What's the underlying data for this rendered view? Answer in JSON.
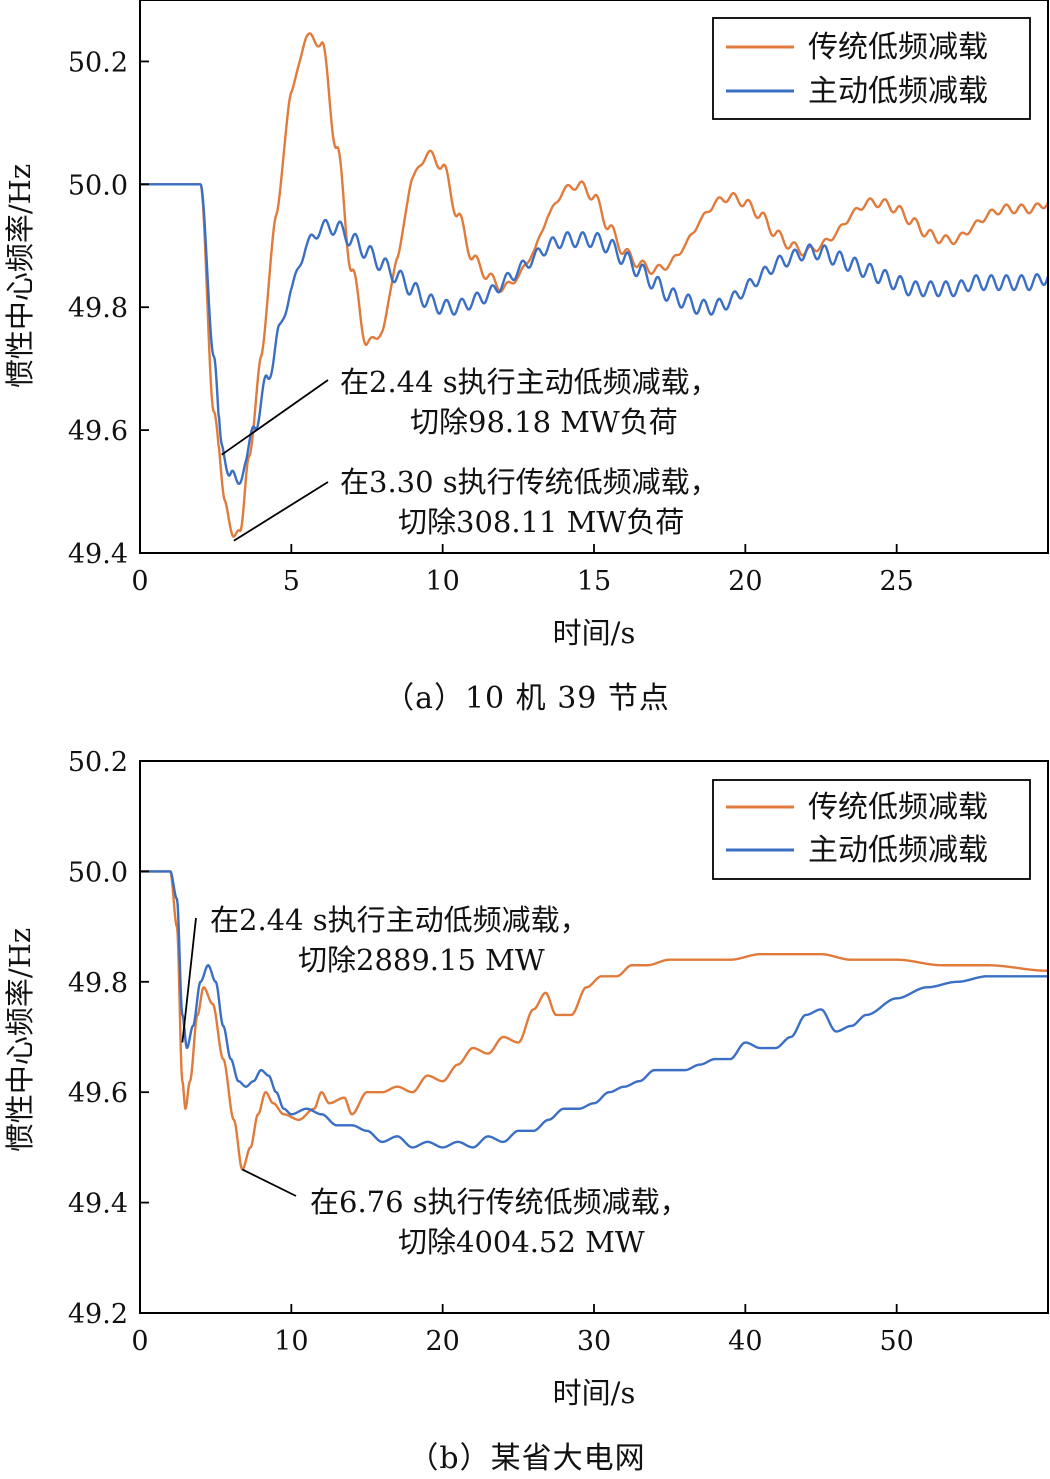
{
  "colors": {
    "traditional": "#e07b3c",
    "active": "#3a6fc4",
    "axis": "#000000"
  },
  "chart_data": [
    {
      "type": "line",
      "caption": "（a）10 机 39 节点",
      "xlabel": "时间/s",
      "ylabel": "惯性中心频率/Hz",
      "xlim": [
        0,
        30
      ],
      "ylim": [
        49.4,
        50.3
      ],
      "xticks": [
        0,
        5,
        10,
        15,
        20,
        25
      ],
      "xtick_labels": [
        "0",
        "5",
        "10",
        "15",
        "20",
        "25"
      ],
      "yticks": [
        49.4,
        49.6,
        49.8,
        50.0,
        50.2
      ],
      "ytick_labels": [
        "49.4",
        "49.6",
        "49.8",
        "50.0",
        "50.2"
      ],
      "legend": [
        "传统低频减载",
        "主动低频减载"
      ],
      "series": [
        {
          "name": "传统低频减载",
          "color": "#e07b3c",
          "ripple": 0.007,
          "x": [
            0,
            2,
            2.44,
            2.8,
            3.1,
            3.3,
            3.6,
            4.0,
            4.5,
            5.0,
            5.5,
            6.0,
            6.5,
            7.0,
            7.5,
            8.0,
            8.5,
            9.0,
            9.5,
            10.0,
            10.5,
            11.0,
            11.5,
            12.0,
            12.5,
            13.0,
            13.5,
            14.0,
            14.5,
            15.0,
            15.5,
            16.0,
            16.5,
            17.0,
            17.5,
            18.0,
            18.5,
            19.0,
            19.5,
            20.0,
            20.5,
            21.0,
            21.5,
            22.0,
            22.5,
            23.0,
            23.5,
            24.0,
            24.5,
            25.0,
            25.5,
            26.0,
            26.5,
            27.0,
            27.5,
            28.0,
            28.5,
            29.0,
            29.5,
            30.0
          ],
          "y": [
            50.0,
            50.0,
            49.63,
            49.49,
            49.42,
            49.44,
            49.55,
            49.72,
            49.95,
            50.15,
            50.24,
            50.23,
            50.06,
            49.86,
            49.74,
            49.76,
            49.88,
            50.01,
            50.05,
            50.03,
            49.95,
            49.88,
            49.85,
            49.83,
            49.85,
            49.89,
            49.95,
            49.99,
            50.0,
            49.98,
            49.93,
            49.89,
            49.87,
            49.86,
            49.87,
            49.9,
            49.94,
            49.97,
            49.98,
            49.97,
            49.95,
            49.92,
            49.9,
            49.89,
            49.9,
            49.92,
            49.95,
            49.97,
            49.97,
            49.96,
            49.94,
            49.92,
            49.91,
            49.91,
            49.93,
            49.95,
            49.96,
            49.96,
            49.96,
            49.97
          ]
        },
        {
          "name": "主动低频减载",
          "color": "#3a6fc4",
          "ripple": 0.012,
          "x": [
            0,
            2,
            2.44,
            2.7,
            3.0,
            3.2,
            3.5,
            3.8,
            4.2,
            4.6,
            5.0,
            5.5,
            6.0,
            6.5,
            7.0,
            7.5,
            8.0,
            8.5,
            9.0,
            9.5,
            10.0,
            10.5,
            11.0,
            11.5,
            12.0,
            12.5,
            13.0,
            13.5,
            14.0,
            14.5,
            15.0,
            15.5,
            16.0,
            16.5,
            17.0,
            17.5,
            18.0,
            18.5,
            19.0,
            19.5,
            20.0,
            20.5,
            21.0,
            21.5,
            22.0,
            22.5,
            23.0,
            23.5,
            24.0,
            24.5,
            25.0,
            25.5,
            26.0,
            26.5,
            27.0,
            27.5,
            28.0,
            28.5,
            29.0,
            29.5,
            30.0
          ],
          "y": [
            50.0,
            50.0,
            49.72,
            49.57,
            49.53,
            49.51,
            49.55,
            49.61,
            49.68,
            49.76,
            49.83,
            49.9,
            49.93,
            49.93,
            49.91,
            49.89,
            49.87,
            49.85,
            49.83,
            49.81,
            49.8,
            49.8,
            49.81,
            49.82,
            49.84,
            49.86,
            49.88,
            49.9,
            49.91,
            49.91,
            49.91,
            49.9,
            49.88,
            49.86,
            49.84,
            49.82,
            49.81,
            49.8,
            49.8,
            49.81,
            49.83,
            49.85,
            49.87,
            49.88,
            49.89,
            49.89,
            49.88,
            49.87,
            49.86,
            49.85,
            49.84,
            49.83,
            49.83,
            49.83,
            49.83,
            49.84,
            49.84,
            49.84,
            49.84,
            49.84,
            49.85
          ]
        }
      ],
      "annotations": [
        {
          "lines": [
            "在2.44 s执行主动低频减载，",
            "切除98.18 MW负荷"
          ],
          "points_to": {
            "x": 2.7,
            "y": 49.56
          }
        },
        {
          "lines": [
            "在3.30 s执行传统低频减载，",
            "切除308.11 MW负荷"
          ],
          "points_to": {
            "x": 3.1,
            "y": 49.42
          }
        }
      ]
    },
    {
      "type": "line",
      "caption": "（b）某省大电网",
      "xlabel": "时间/s",
      "ylabel": "惯性中心频率/Hz",
      "xlim": [
        0,
        60
      ],
      "ylim": [
        49.2,
        50.2
      ],
      "xticks": [
        0,
        10,
        20,
        30,
        40,
        50
      ],
      "xtick_labels": [
        "0",
        "10",
        "20",
        "30",
        "40",
        "50"
      ],
      "yticks": [
        49.2,
        49.4,
        49.6,
        49.8,
        50.0,
        50.2
      ],
      "ytick_labels": [
        "49.2",
        "49.4",
        "49.6",
        "49.8",
        "50.0",
        "50.2"
      ],
      "legend": [
        "传统低频减载",
        "主动低频减载"
      ],
      "series": [
        {
          "name": "传统低频减载",
          "color": "#e07b3c",
          "ripple": 0,
          "x": [
            0,
            2,
            2.44,
            2.8,
            3.0,
            3.3,
            3.8,
            4.2,
            4.8,
            5.5,
            6.2,
            6.76,
            7.3,
            7.8,
            8.3,
            8.8,
            9.5,
            10.5,
            11.5,
            12.0,
            12.5,
            13.5,
            14.0,
            15.0,
            16.0,
            17.0,
            18.0,
            19.0,
            20.0,
            21.0,
            22.0,
            23.0,
            24.0,
            25.0,
            26.0,
            26.8,
            27.5,
            28.5,
            29.5,
            30.5,
            31.5,
            32.5,
            33.5,
            35.0,
            37.0,
            39.0,
            41.0,
            43.0,
            45.0,
            47.0,
            50.0,
            53.0,
            56.0,
            60.0
          ],
          "y": [
            50.0,
            50.0,
            49.9,
            49.62,
            49.57,
            49.62,
            49.74,
            49.79,
            49.76,
            49.66,
            49.55,
            49.46,
            49.5,
            49.56,
            49.6,
            49.58,
            49.56,
            49.55,
            49.57,
            49.6,
            49.58,
            49.59,
            49.56,
            49.6,
            49.6,
            49.61,
            49.6,
            49.63,
            49.62,
            49.65,
            49.68,
            49.67,
            49.7,
            49.69,
            49.75,
            49.78,
            49.74,
            49.74,
            49.79,
            49.81,
            49.81,
            49.83,
            49.83,
            49.84,
            49.84,
            49.84,
            49.85,
            49.85,
            49.85,
            49.84,
            49.84,
            49.83,
            49.83,
            49.82
          ]
        },
        {
          "name": "主动低频减载",
          "color": "#3a6fc4",
          "ripple": 0,
          "x": [
            0,
            2,
            2.44,
            2.8,
            3.1,
            3.5,
            4.0,
            4.5,
            5.0,
            5.5,
            6.0,
            6.5,
            7.0,
            7.5,
            8.0,
            8.5,
            9.0,
            9.5,
            10.0,
            11.0,
            12.0,
            13.0,
            14.0,
            15.0,
            16.0,
            17.0,
            18.0,
            19.0,
            20.0,
            21.0,
            22.0,
            23.0,
            24.0,
            25.0,
            26.0,
            27.0,
            28.0,
            29.0,
            30.0,
            31.0,
            32.0,
            33.0,
            34.0,
            35.0,
            36.0,
            37.0,
            38.0,
            39.0,
            40.0,
            41.0,
            42.0,
            43.0,
            44.0,
            45.0,
            46.0,
            47.0,
            48.0,
            50.0,
            52.0,
            54.0,
            56.0,
            58.0,
            60.0
          ],
          "y": [
            50.0,
            50.0,
            49.95,
            49.74,
            49.68,
            49.72,
            49.8,
            49.83,
            49.8,
            49.72,
            49.66,
            49.62,
            49.61,
            49.62,
            49.64,
            49.63,
            49.6,
            49.57,
            49.56,
            49.57,
            49.56,
            49.54,
            49.54,
            49.53,
            49.51,
            49.52,
            49.5,
            49.51,
            49.5,
            49.51,
            49.5,
            49.52,
            49.51,
            49.53,
            49.53,
            49.55,
            49.57,
            49.57,
            49.58,
            49.6,
            49.61,
            49.62,
            49.64,
            49.64,
            49.64,
            49.65,
            49.66,
            49.66,
            49.69,
            49.68,
            49.68,
            49.7,
            49.74,
            49.75,
            49.71,
            49.72,
            49.74,
            49.77,
            49.79,
            49.8,
            49.81,
            49.81,
            49.81
          ]
        }
      ],
      "annotations": [
        {
          "lines": [
            "在2.44 s执行主动低频减载，",
            "切除2889.15 MW"
          ],
          "points_to": {
            "x": 2.8,
            "y": 49.69
          }
        },
        {
          "lines": [
            "在6.76 s执行传统低频减载，",
            "切除4004.52 MW"
          ],
          "points_to": {
            "x": 6.76,
            "y": 49.46
          }
        }
      ]
    }
  ]
}
